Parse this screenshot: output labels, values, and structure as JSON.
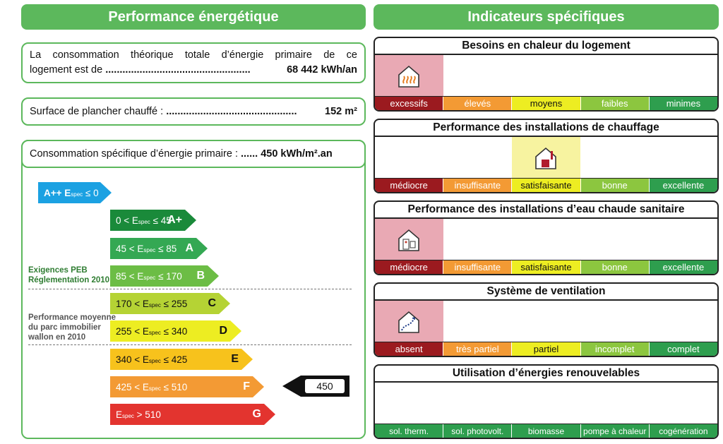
{
  "left_header": "Performance énergétique",
  "right_header": "Indicateurs spécifiques",
  "consumption": {
    "line1": "La consommation théorique totale d’énergie primaire de ce",
    "line2_prefix": "logement est de ",
    "dots": "...................................................",
    "value": "68 442 kWh/an"
  },
  "surface": {
    "label": "Surface de plancher chauffé : ",
    "dots": "..............................................",
    "value": "152 m²"
  },
  "specific": {
    "label": "Consommation spécifique d’énergie primaire : ",
    "dots": "......",
    "value": "450 kWh/m².an"
  },
  "labels": {
    "peb": "Exigences PEB",
    "peb2": "Réglementation 2010",
    "perf1": "Performance moyenne",
    "perf2": "du parc immobilier",
    "perf3": "wallon en 2010"
  },
  "classes": [
    {
      "text": "A++  E",
      "sub": "spec",
      "rest": " ≤ 0",
      "letter": "",
      "color": "#1ba1e2"
    },
    {
      "text": "0 < E",
      "sub": "spec",
      "rest": " ≤ 45",
      "letter": "A+",
      "color": "#1a8a3a"
    },
    {
      "text": "45 < E",
      "sub": "spec",
      "rest": " ≤ 85",
      "letter": "A",
      "color": "#34a853"
    },
    {
      "text": "85 < E",
      "sub": "spec",
      "rest": " ≤ 170",
      "letter": "B",
      "color": "#6cbd45"
    },
    {
      "text": "170 < E",
      "sub": "spec",
      "rest": " ≤ 255",
      "letter": "C",
      "color": "#b5d334"
    },
    {
      "text": "255 < E",
      "sub": "spec",
      "rest": " ≤ 340",
      "letter": "D",
      "color": "#eded22"
    },
    {
      "text": "340 < E",
      "sub": "spec",
      "rest": " ≤ 425",
      "letter": "E",
      "color": "#f7c21c"
    },
    {
      "text": "425 < E",
      "sub": "spec",
      "rest": " ≤ 510",
      "letter": "F",
      "color": "#f39a34"
    },
    {
      "text": "E",
      "sub": "spec",
      "rest": " > 510",
      "letter": "G",
      "color": "#e3342f"
    }
  ],
  "pointer_value": "450",
  "panels": [
    {
      "title": "Besoins en chaleur du logement",
      "cells": [
        "excessifs",
        "élevés",
        "moyens",
        "faibles",
        "minimes"
      ],
      "selected": 0,
      "icon": "heating-need-icon"
    },
    {
      "title": "Performance des installations de chauffage",
      "cells": [
        "médiocre",
        "insuffisante",
        "satisfaisante",
        "bonne",
        "excellente"
      ],
      "selected": 2,
      "icon": "heating-installation-icon"
    },
    {
      "title": "Performance des installations d’eau chaude sanitaire",
      "cells": [
        "médiocre",
        "insuffisante",
        "satisfaisante",
        "bonne",
        "excellente"
      ],
      "selected": 0,
      "icon": "hot-water-icon"
    },
    {
      "title": "Système de ventilation",
      "cells": [
        "absent",
        "très partiel",
        "partiel",
        "incomplet",
        "complet"
      ],
      "selected": 0,
      "icon": "ventilation-icon"
    },
    {
      "title": "Utilisation d’énergies renouvelables",
      "cells": [
        "sol. therm.",
        "sol. photovolt.",
        "biomasse",
        "pompe à chaleur",
        "cogénération"
      ],
      "selected": -1,
      "icon": ""
    }
  ],
  "colors": {
    "scale5": [
      "#9b1a1f",
      "#f39a34",
      "#eded22",
      "#8cc63f",
      "#2e9e4e"
    ],
    "renew": "#2e9e4e",
    "sel_red": "#e9a9b4",
    "sel_yellow": "#f7f3a0"
  }
}
